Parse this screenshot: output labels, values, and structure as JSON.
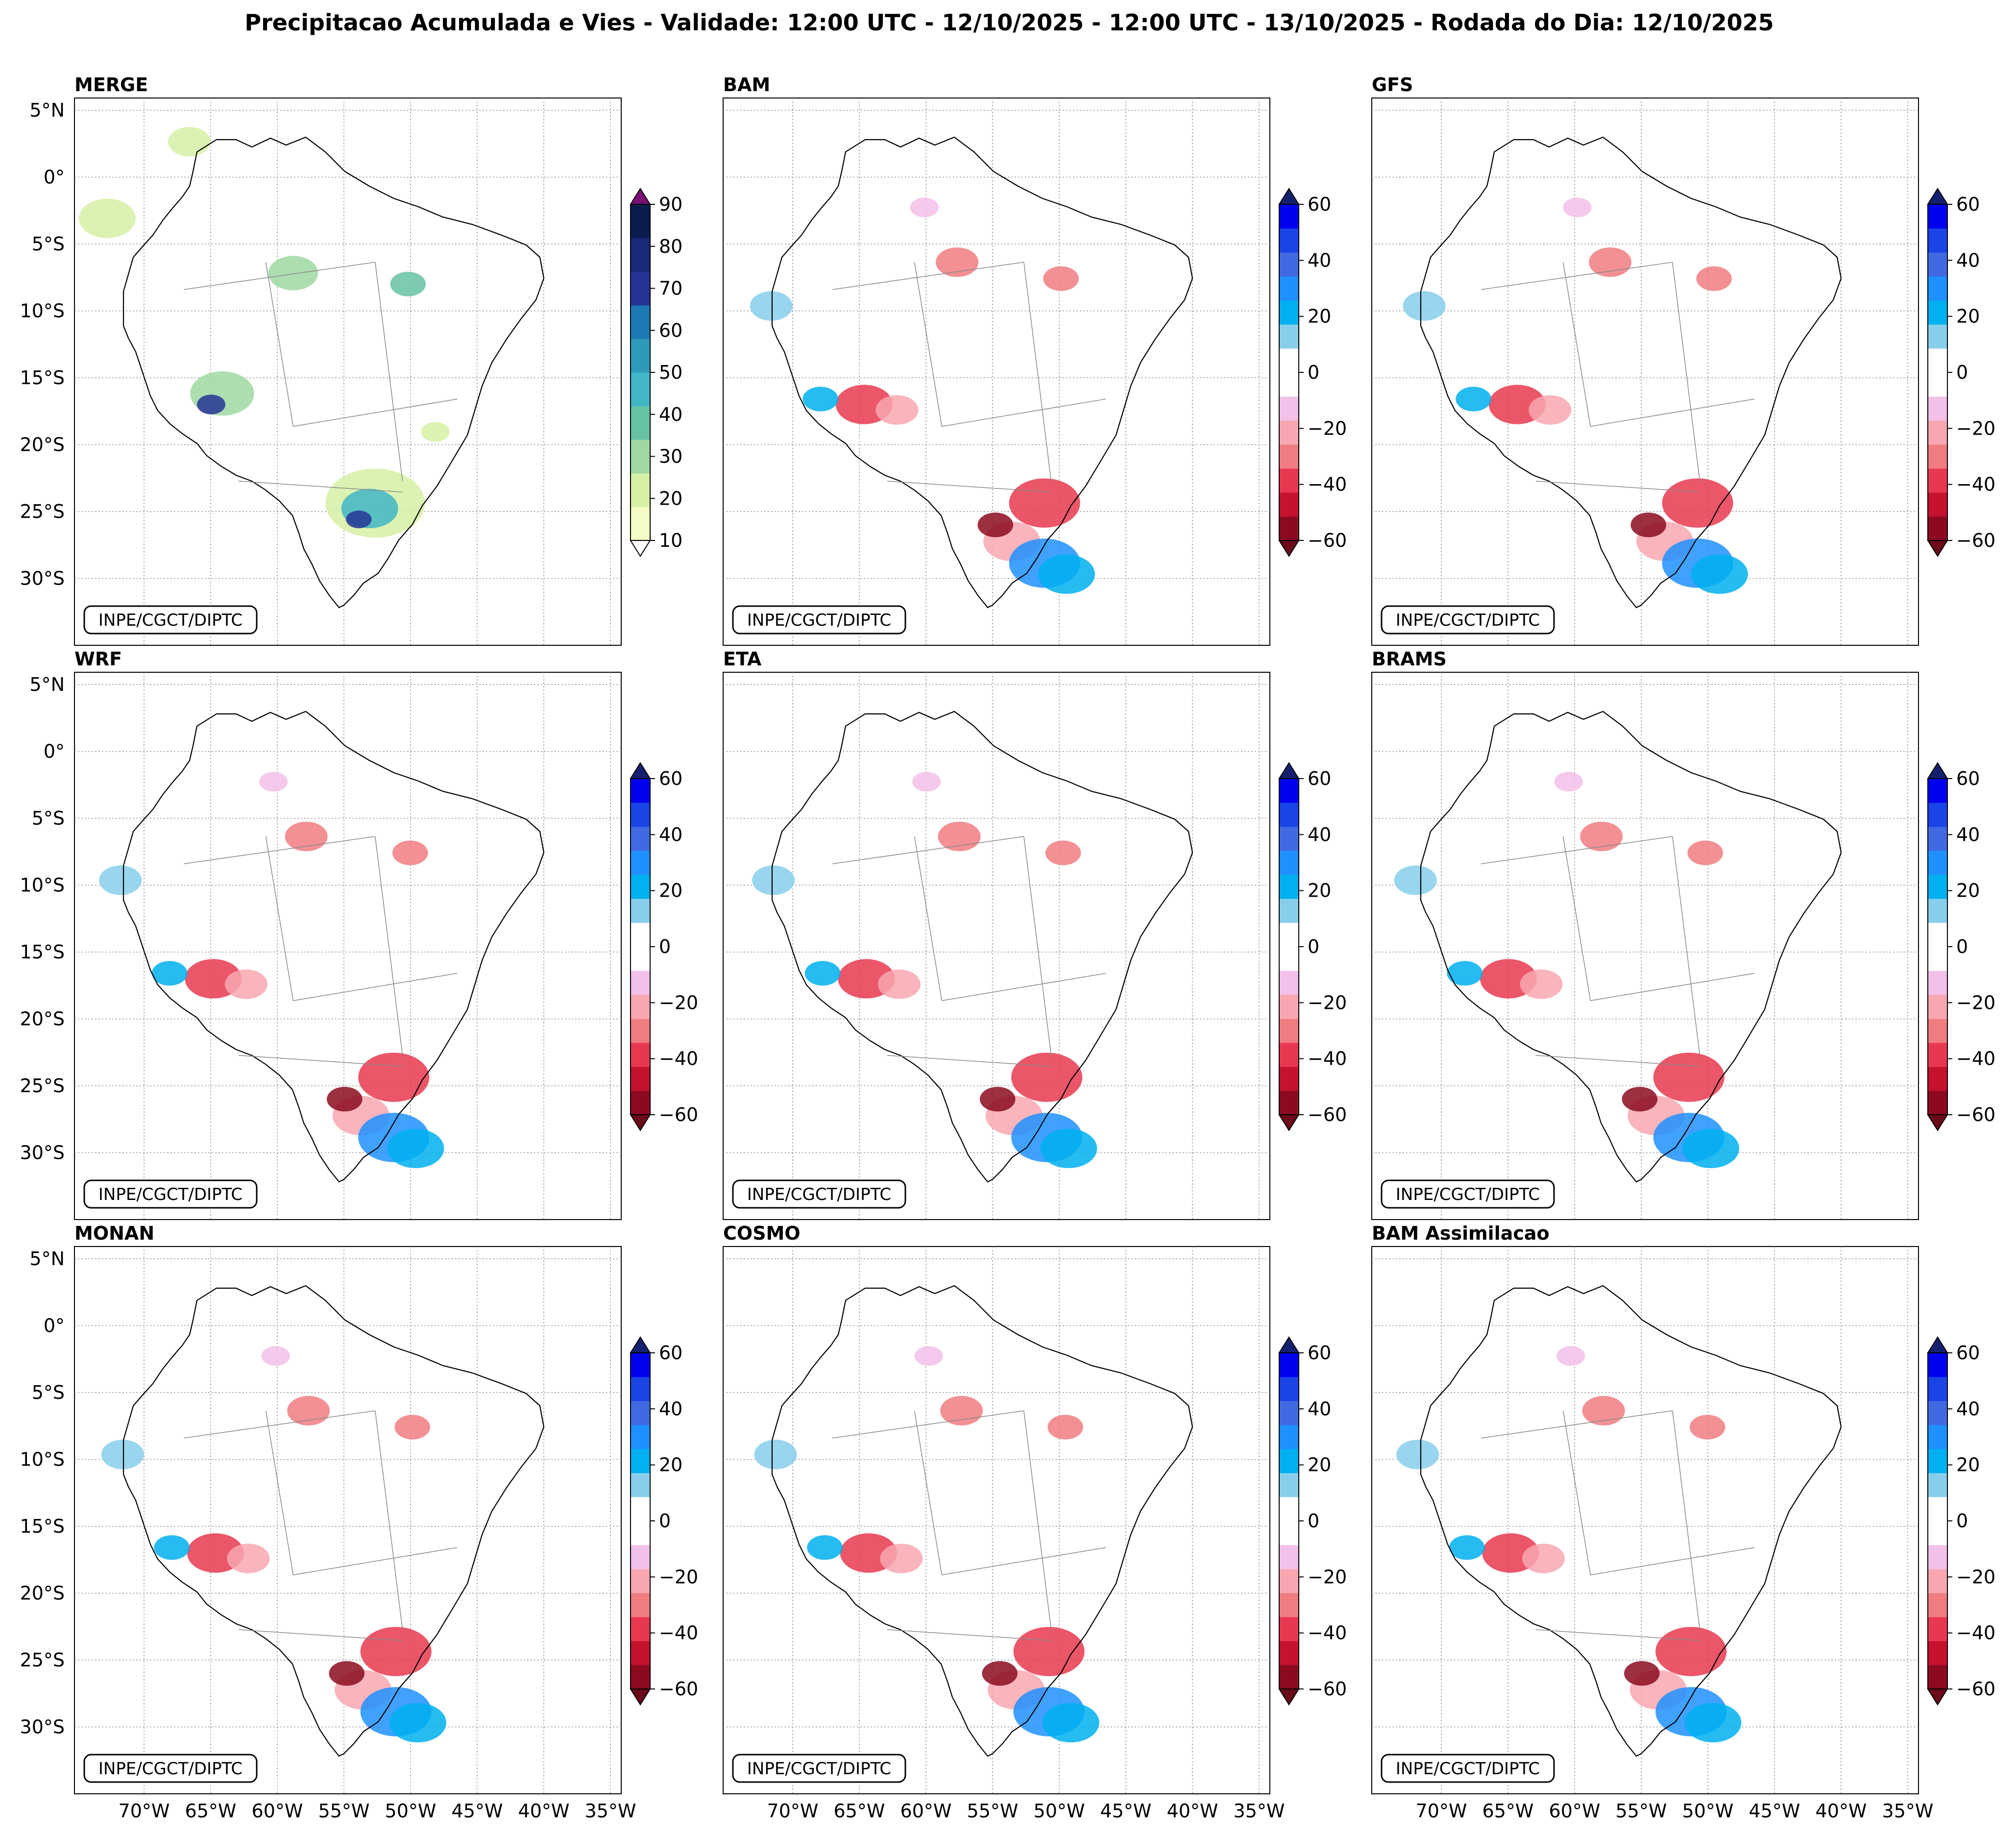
{
  "figure": {
    "title": "Precipitacao Acumulada e Vies - Validade: 12:00 UTC - 12/10/2025 - 12:00 UTC - 13/10/2025 - Rodada do Dia: 12/10/2025"
  },
  "credit": "INPE/CGCT/DIPTC",
  "axes": {
    "lat_labels": [
      "5°N",
      "0°",
      "5°S",
      "10°S",
      "15°S",
      "20°S",
      "25°S",
      "30°S"
    ],
    "lon_labels": [
      "70°W",
      "65°W",
      "60°W",
      "55°W",
      "50°W",
      "45°W",
      "40°W",
      "35°W"
    ]
  },
  "colorbars": {
    "merge": {
      "ticks": [
        "90",
        "80",
        "70",
        "60",
        "50",
        "40",
        "30",
        "20",
        "10"
      ],
      "colors": [
        "#f4fbc4",
        "#d6f0a6",
        "#9fd8a2",
        "#66c2a5",
        "#41b6c4",
        "#2c9ab8",
        "#1d78b4",
        "#253494",
        "#1a2a7a",
        "#0b1d4e"
      ],
      "top_arrow": "#7a0f76",
      "bottom_arrow": "#ffffff"
    },
    "bias": {
      "ticks": [
        "60",
        "40",
        "20",
        "0",
        "−20",
        "−40",
        "−60"
      ],
      "colors": [
        "#8b0a1f",
        "#c4122f",
        "#e8384f",
        "#f07c80",
        "#f8a7b0",
        "#f2c0e8",
        "#ffffff",
        "#ffffff",
        "#87ceeb",
        "#00b0f0",
        "#1e90ff",
        "#4169e1",
        "#1a44e6",
        "#0000ee"
      ],
      "top_arrow": "#14206e",
      "bottom_arrow": "#6b0a18"
    }
  },
  "panels": [
    {
      "id": "merge",
      "title": "MERGE",
      "colorbar": "merge"
    },
    {
      "id": "bam",
      "title": "BAM",
      "colorbar": "bias"
    },
    {
      "id": "gfs",
      "title": "GFS",
      "colorbar": "bias"
    },
    {
      "id": "wrf",
      "title": "WRF",
      "colorbar": "bias"
    },
    {
      "id": "eta",
      "title": "ETA",
      "colorbar": "bias"
    },
    {
      "id": "brams",
      "title": "BRAMS",
      "colorbar": "bias"
    },
    {
      "id": "monan",
      "title": "MONAN",
      "colorbar": "bias"
    },
    {
      "id": "cosmo",
      "title": "COSMO",
      "colorbar": "bias"
    },
    {
      "id": "bam-assim",
      "title": "BAM Assimilacao",
      "colorbar": "bias"
    }
  ]
}
